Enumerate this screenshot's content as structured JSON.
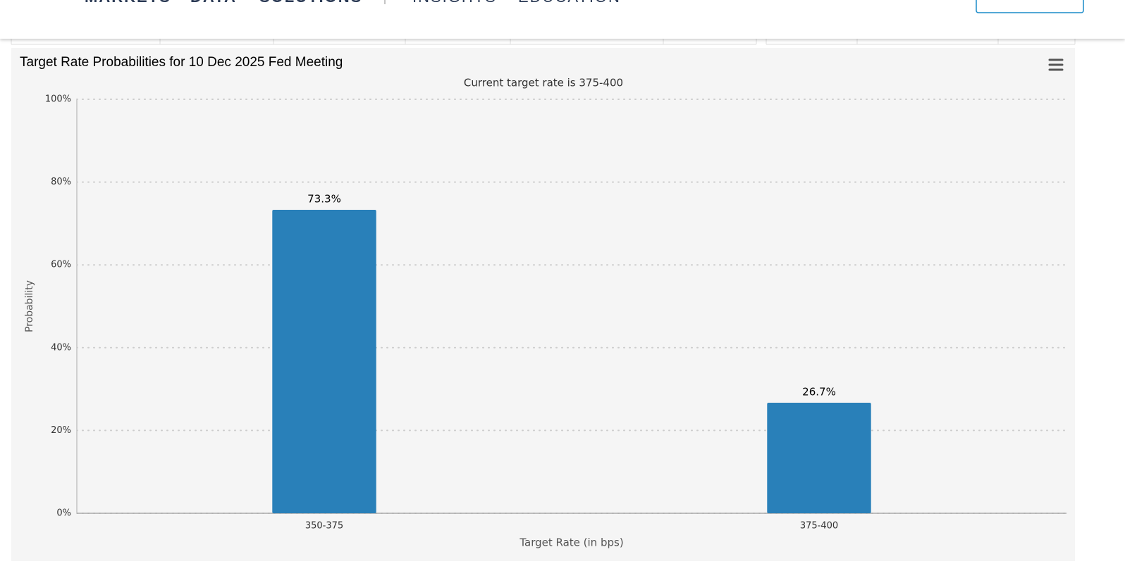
{
  "nav": [
    "MARKETS",
    "DATA",
    "SOLUTIONS",
    "INSIGHTS",
    "EDUCATION"
  ],
  "chart_data": {
    "type": "bar",
    "title": "Target Rate Probabilities for 10 Dec 2025 Fed Meeting",
    "subtitle": "Current target rate is 375-400",
    "x_label": "Target Rate (in bps)",
    "y_label": "Probability",
    "categories": [
      "350-375",
      "375-400"
    ],
    "values": [
      73.3,
      26.7
    ],
    "value_labels": [
      "73.3%",
      "26.7%"
    ],
    "color": "#2980b9",
    "ylim": [
      0,
      100
    ],
    "yticks": [
      {
        "value": 0,
        "label": "0%"
      },
      {
        "value": 20,
        "label": "20%"
      },
      {
        "value": 40,
        "label": "40%"
      },
      {
        "value": 60,
        "label": "60%"
      },
      {
        "value": 80,
        "label": "80%"
      },
      {
        "value": 100,
        "label": "100%"
      }
    ],
    "grid": true
  }
}
